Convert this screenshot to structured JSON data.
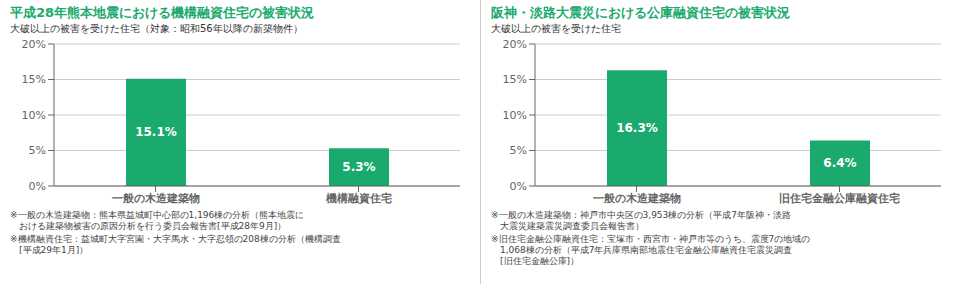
{
  "chart_data": [
    {
      "type": "bar",
      "title": "平成28年熊本地震における機構融資住宅の被害状況",
      "subtitle": "大破以上の被害を受けた住宅（対象：昭和56年以降の新築物件）",
      "categories": [
        "一般の木造建築物",
        "機構融資住宅"
      ],
      "values": [
        15.1,
        5.3
      ],
      "value_labels": [
        "15.1%",
        "5.3%"
      ],
      "data_labels": true,
      "color": "#1aaa6e",
      "ylim": [
        0,
        20
      ],
      "yticks": [
        {
          "value": 0,
          "label": "0%"
        },
        {
          "value": 5,
          "label": "5%"
        },
        {
          "value": 10,
          "label": "10%"
        },
        {
          "value": 15,
          "label": "15%"
        },
        {
          "value": 20,
          "label": "20%"
        }
      ],
      "grid": true,
      "annotations": [
        "※一般の木造建築物：熊本県益城町中心部の1,196棟の分析（熊本地震に\n　おける建築物被害の原因分析を行う委員会報告書[平成28年9月]）",
        "※機構融資住宅：益城町大字宮園・大字馬水・大字忍領の208棟の分析（機構調査\n　[平成29年1月]）"
      ]
    },
    {
      "type": "bar",
      "title": "阪神・淡路大震災における公庫融資住宅の被害状況",
      "subtitle": "大破以上の被害を受けた住宅",
      "categories": [
        "一般の木造建築物",
        "旧住宅金融公庫融資住宅"
      ],
      "values": [
        16.3,
        6.4
      ],
      "value_labels": [
        "16.3%",
        "6.4%"
      ],
      "data_labels": true,
      "color": "#1aaa6e",
      "ylim": [
        0,
        20
      ],
      "yticks": [
        {
          "value": 0,
          "label": "0%"
        },
        {
          "value": 5,
          "label": "5%"
        },
        {
          "value": 10,
          "label": "10%"
        },
        {
          "value": 15,
          "label": "15%"
        },
        {
          "value": 20,
          "label": "20%"
        }
      ],
      "grid": true,
      "annotations": [
        "※一般の木造建築物：神戸市中央区の3,953棟の分析（平成7年阪神・淡路\n　大震災建築震災調査委員会報告書）",
        "※旧住宅金融公庫融資住宅：宝塚市・西宮市・神戸市等のうち、震度7の地域の\n　1,068棟の分析（平成7年兵庫県南部地震住宅金融公庫融資住宅震災調査\n　[旧住宅金融公庫]）"
      ]
    }
  ]
}
